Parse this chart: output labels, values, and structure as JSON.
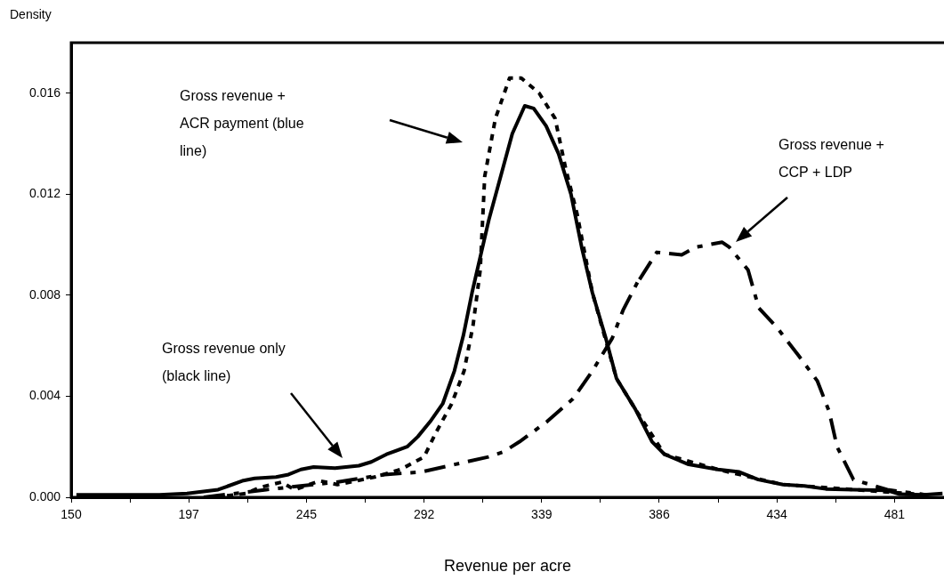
{
  "chart_data": {
    "type": "line",
    "xlabel": "Revenue per acre",
    "ylabel": "Density",
    "xlim": [
      150,
      501
    ],
    "ylim": [
      0,
      0.018
    ],
    "xticks": [
      {
        "value": 150,
        "label": "150"
      },
      {
        "value": 173.65,
        "label": null
      },
      {
        "value": 197.3,
        "label": "197"
      },
      {
        "value": 220.95,
        "label": null
      },
      {
        "value": 244.6,
        "label": "245"
      },
      {
        "value": 268.25,
        "label": null
      },
      {
        "value": 291.9,
        "label": "292"
      },
      {
        "value": 315.55,
        "label": null
      },
      {
        "value": 339.2,
        "label": "339"
      },
      {
        "value": 362.85,
        "label": null
      },
      {
        "value": 386.5,
        "label": "386"
      },
      {
        "value": 410.15,
        "label": null
      },
      {
        "value": 433.8,
        "label": "434"
      },
      {
        "value": 457.45,
        "label": null
      },
      {
        "value": 481.1,
        "label": "481"
      }
    ],
    "yticks": [
      {
        "value": 0,
        "label": "0.000"
      },
      {
        "value": 0.004,
        "label": "0.004"
      },
      {
        "value": 0.008,
        "label": "0.008"
      },
      {
        "value": 0.012,
        "label": "0.012"
      },
      {
        "value": 0.016,
        "label": "0.016"
      }
    ],
    "marker": "none",
    "series": [
      {
        "color": "#000000",
        "line_style": "solid",
        "x": [
          152.1,
          174.0,
          185.5,
          196.6,
          209.1,
          218.8,
          223.8,
          232.4,
          237.4,
          242.4,
          247.5,
          256.1,
          265.7,
          270.7,
          276.8,
          285.1,
          289.4,
          294.4,
          299.4,
          304.1,
          307.7,
          311.2,
          318.0,
          327.4,
          332.4,
          336.0,
          341.0,
          346.0,
          351.0,
          355.3,
          359.6,
          365.0,
          369.3,
          376.8,
          383.6,
          388.6,
          398.3,
          410.1,
          418.7,
          426.3,
          436.3,
          444.9,
          453.5,
          464.6,
          478.2,
          483.2,
          492.9,
          500.4
        ],
        "values": [
          0.0001,
          0.0001,
          0.0001,
          0.00015,
          0.0003,
          0.00065,
          0.00075,
          0.0008,
          0.0009,
          0.0011,
          0.0012,
          0.00115,
          0.00125,
          0.0014,
          0.0017,
          0.002,
          0.0024,
          0.003,
          0.0037,
          0.005,
          0.0064,
          0.0081,
          0.011,
          0.0144,
          0.0155,
          0.0154,
          0.0147,
          0.0136,
          0.012,
          0.0099,
          0.0081,
          0.0063,
          0.0047,
          0.0035,
          0.0022,
          0.0017,
          0.0013,
          0.0011,
          0.001,
          0.0007,
          0.0005,
          0.00045,
          0.00033,
          0.0003,
          0.00027,
          0.00012,
          0.0001,
          0.00015
        ]
      },
      {
        "color": "#000000",
        "line_style": "dotted",
        "x": [
          207.7,
          220.2,
          226.3,
          234.6,
          239.9,
          250.0,
          257.1,
          272.0,
          282.5,
          291.9,
          296.9,
          303.0,
          308.0,
          311.6,
          314.5,
          316.3,
          320.6,
          326.3,
          331.0,
          338.2,
          344.6,
          348.9,
          353.5,
          359.6,
          369.3,
          376.8,
          388.6,
          410.1,
          436.3,
          464.6,
          479.6,
          493.6
        ],
        "values": [
          0,
          0.00015,
          0.0004,
          0.0006,
          0.0003,
          0.00065,
          0.0005,
          0.0008,
          0.0011,
          0.0016,
          0.0026,
          0.0037,
          0.005,
          0.0068,
          0.009,
          0.0127,
          0.015,
          0.0166,
          0.0166,
          0.016,
          0.015,
          0.013,
          0.0112,
          0.0081,
          0.0047,
          0.0035,
          0.0017,
          0.0011,
          0.0005,
          0.0003,
          0.0002,
          0.0001
        ]
      },
      {
        "color": "#000000",
        "line_style": "dashed",
        "x": [
          203.3,
          228.4,
          256.8,
          276.1,
          290.6,
          304.2,
          317.8,
          323.9,
          330.3,
          341.4,
          351.8,
          359.6,
          367.6,
          371.9,
          378.7,
          378.4,
          385.5,
          395.5,
          401.0,
          411.8,
          414.7,
          422.2,
          426.5,
          434.0,
          442.6,
          450.1,
          454.8,
          458.0,
          464.6,
          478.2,
          493.6
        ],
        "values": [
          0,
          0.0003,
          0.0006,
          0.0009,
          0.001,
          0.0013,
          0.0016,
          0.0018,
          0.0022,
          0.003,
          0.0039,
          0.005,
          0.0063,
          0.0074,
          0.0087,
          0.0086,
          0.0097,
          0.0096,
          0.0099,
          0.0101,
          0.0099,
          0.009,
          0.0075,
          0.0067,
          0.0056,
          0.0046,
          0.0034,
          0.002,
          0.0007,
          0.0003,
          0.0001
        ]
      }
    ],
    "annotations": [
      "Gross revenue + ACR payment (blue line)",
      "Gross revenue + CCP + LDP",
      "Gross revenue only (black line)"
    ]
  }
}
